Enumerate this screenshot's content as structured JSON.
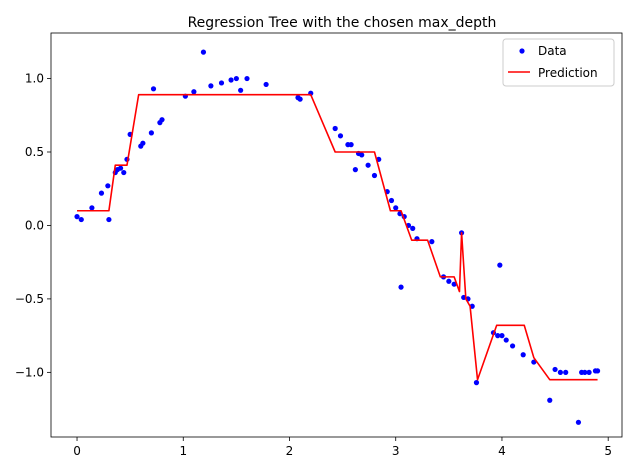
{
  "chart_data": {
    "type": "scatter",
    "title": "Regression Tree with the chosen max_depth",
    "xlabel": "",
    "ylabel": "",
    "xlim": [
      -0.245,
      5.13
    ],
    "ylim": [
      -1.44,
      1.31
    ],
    "x_ticks": [
      0,
      1,
      2,
      3,
      4,
      5
    ],
    "y_ticks": [
      -1.0,
      -0.5,
      0.0,
      0.5,
      1.0
    ],
    "x_tick_labels": [
      "0",
      "1",
      "2",
      "3",
      "4",
      "5"
    ],
    "y_tick_labels": [
      "−1.0",
      "−0.5",
      "0.0",
      "0.5",
      "1.0"
    ],
    "grid": false,
    "legend_position": "top-right",
    "colors": {
      "data": "#0000ff",
      "prediction": "#ff0000",
      "axes": "#000000"
    },
    "series": [
      {
        "name": "Data",
        "kind": "points",
        "x": [
          0.0,
          0.04,
          0.14,
          0.23,
          0.29,
          0.3,
          0.36,
          0.38,
          0.41,
          0.44,
          0.47,
          0.5,
          0.6,
          0.62,
          0.7,
          0.72,
          0.78,
          0.8,
          1.02,
          1.1,
          1.19,
          1.26,
          1.36,
          1.45,
          1.5,
          1.54,
          1.6,
          1.78,
          2.08,
          2.1,
          2.2,
          2.43,
          2.48,
          2.55,
          2.58,
          2.62,
          2.65,
          2.68,
          2.74,
          2.8,
          2.84,
          2.92,
          2.96,
          3.0,
          3.04,
          3.05,
          3.08,
          3.12,
          3.16,
          3.2,
          3.34,
          3.45,
          3.5,
          3.55,
          3.62,
          3.64,
          3.68,
          3.72,
          3.76,
          3.92,
          3.96,
          3.98,
          4.0,
          4.04,
          4.1,
          4.2,
          4.3,
          4.45,
          4.5,
          4.55,
          4.6,
          4.72,
          4.75,
          4.78,
          4.82,
          4.88,
          4.9
        ],
        "y": [
          0.06,
          0.04,
          0.12,
          0.22,
          0.27,
          0.04,
          0.36,
          0.38,
          0.39,
          0.36,
          0.45,
          0.62,
          0.54,
          0.56,
          0.63,
          0.93,
          0.7,
          0.72,
          0.88,
          0.91,
          1.18,
          0.95,
          0.97,
          0.99,
          1.0,
          0.92,
          1.0,
          0.96,
          0.87,
          0.86,
          0.9,
          0.66,
          0.61,
          0.55,
          0.55,
          0.38,
          0.49,
          0.48,
          0.41,
          0.34,
          0.45,
          0.23,
          0.17,
          0.12,
          0.08,
          -0.42,
          0.06,
          0.0,
          -0.02,
          -0.09,
          -0.11,
          -0.35,
          -0.38,
          -0.4,
          -0.05,
          -0.49,
          -0.5,
          -0.55,
          -1.07,
          -0.73,
          -0.75,
          -0.27,
          -0.75,
          -0.78,
          -0.82,
          -0.88,
          -0.93,
          -1.19,
          -0.98,
          -1.0,
          -1.0,
          -1.34,
          -1.0,
          -1.0,
          -1.0,
          -0.99,
          -0.99
        ]
      },
      {
        "name": "Prediction",
        "kind": "line",
        "x": [
          0.0,
          0.3,
          0.36,
          0.47,
          0.58,
          2.2,
          2.43,
          2.8,
          2.95,
          3.05,
          3.15,
          3.3,
          3.42,
          3.55,
          3.6,
          3.62,
          3.66,
          3.7,
          3.77,
          3.95,
          4.21,
          4.3,
          4.45,
          4.6,
          4.9
        ],
        "y": [
          0.1,
          0.1,
          0.41,
          0.41,
          0.89,
          0.89,
          0.5,
          0.5,
          0.1,
          0.1,
          -0.1,
          -0.1,
          -0.35,
          -0.35,
          -0.45,
          -0.05,
          -0.5,
          -0.55,
          -1.05,
          -0.68,
          -0.68,
          -0.9,
          -1.05,
          -1.05,
          -1.05
        ]
      }
    ]
  }
}
